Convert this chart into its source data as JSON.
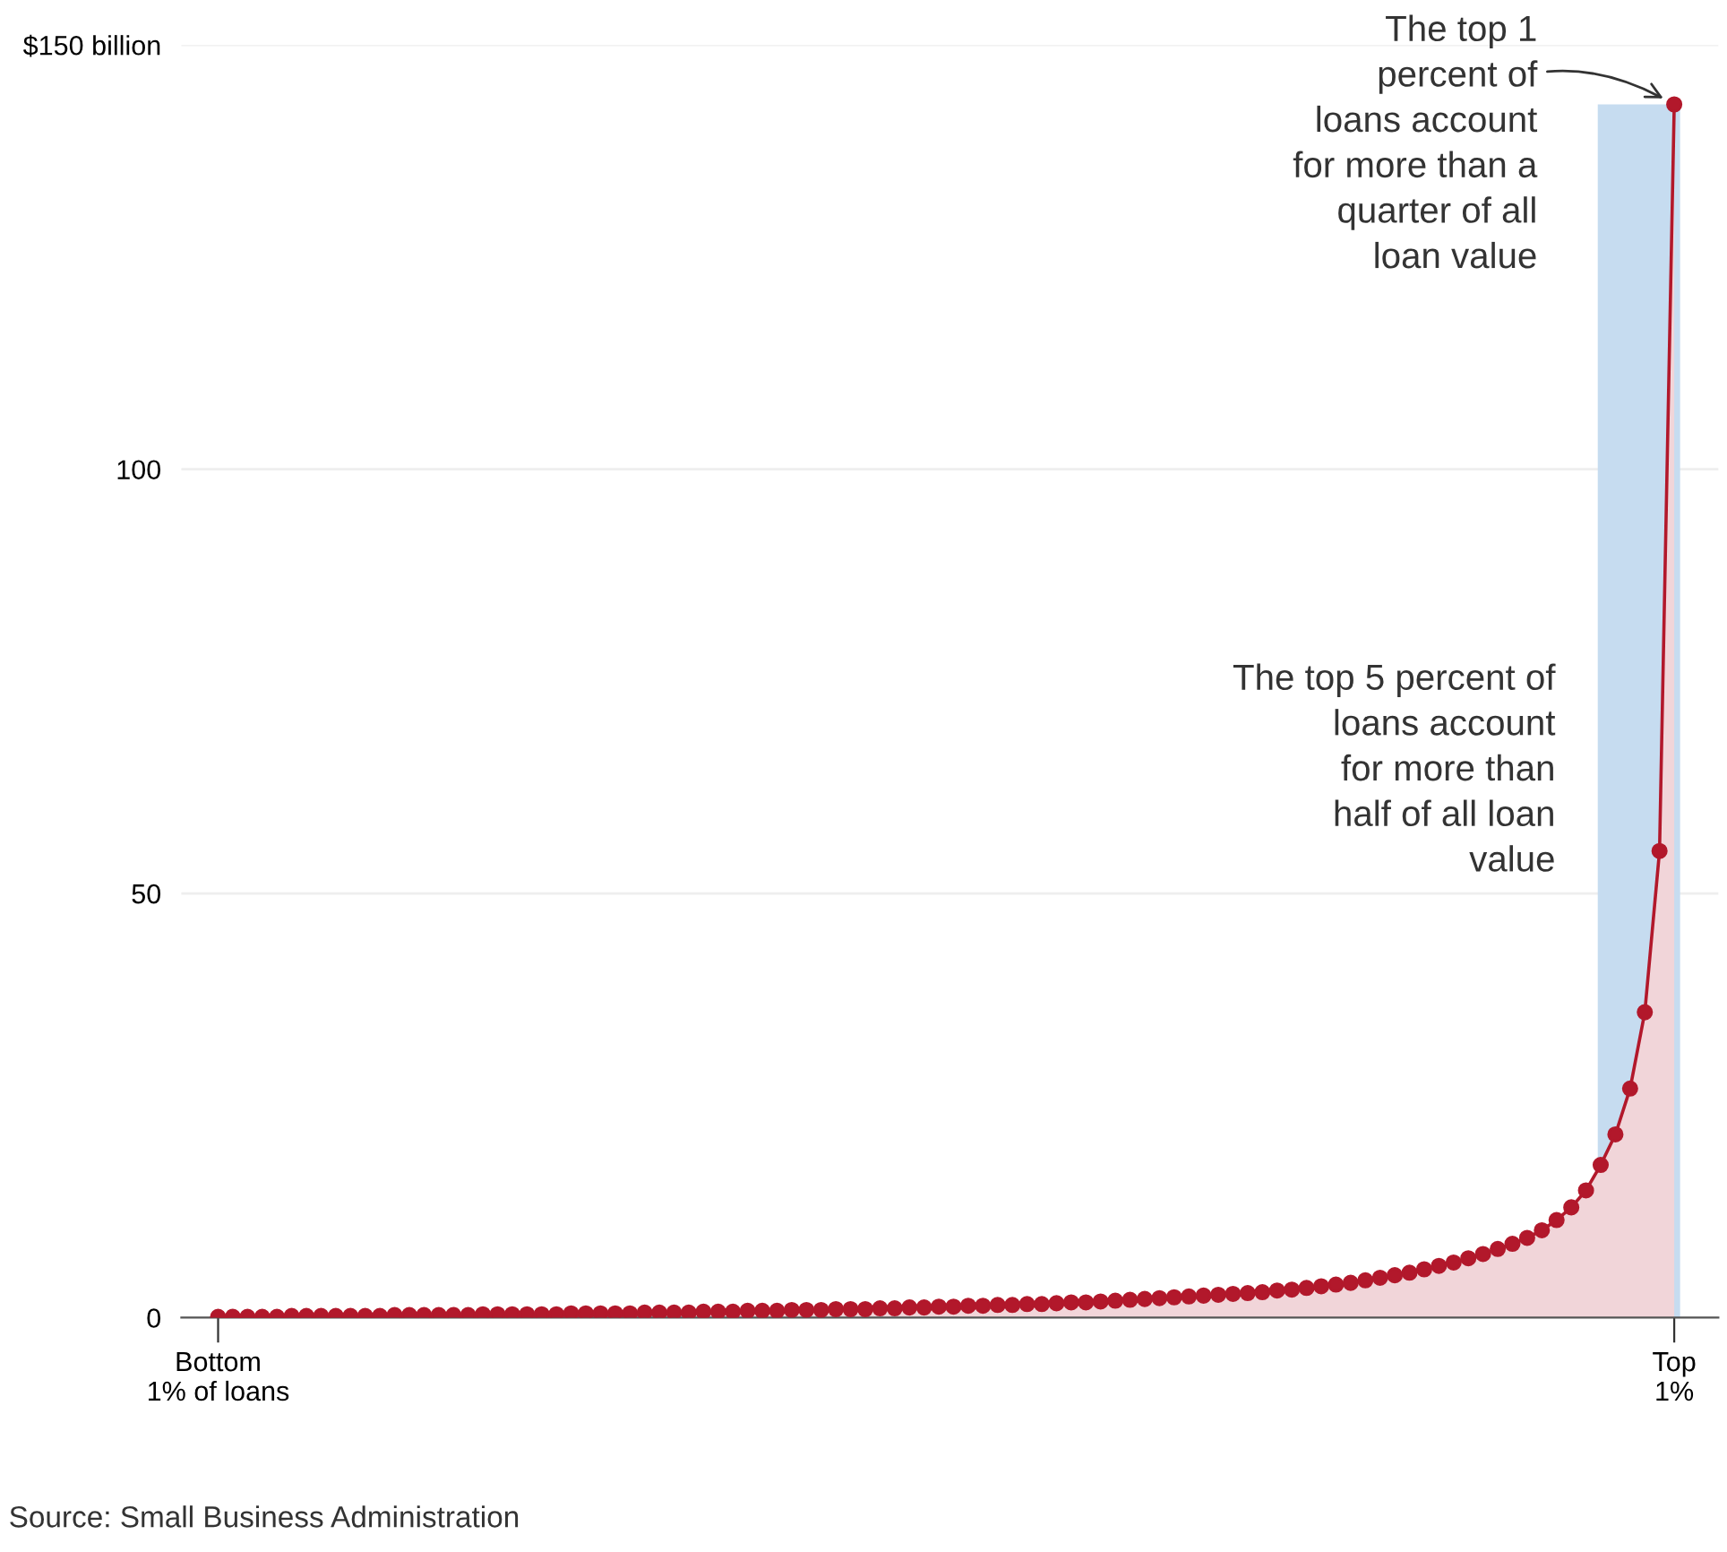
{
  "chart_data": {
    "type": "area",
    "categories": [
      "Bottom\n1% of loans",
      null,
      null,
      null,
      null,
      null,
      null,
      null,
      null,
      null,
      null,
      null,
      null,
      null,
      null,
      null,
      null,
      null,
      null,
      null,
      null,
      null,
      null,
      null,
      null,
      null,
      null,
      null,
      null,
      null,
      null,
      null,
      null,
      null,
      null,
      null,
      null,
      null,
      null,
      null,
      null,
      null,
      null,
      null,
      null,
      null,
      null,
      null,
      null,
      null,
      null,
      null,
      null,
      null,
      null,
      null,
      null,
      null,
      null,
      null,
      null,
      null,
      null,
      null,
      null,
      null,
      null,
      null,
      null,
      null,
      null,
      null,
      null,
      null,
      null,
      null,
      null,
      null,
      null,
      null,
      null,
      null,
      null,
      null,
      null,
      null,
      null,
      null,
      null,
      null,
      null,
      null,
      null,
      null,
      null,
      null,
      null,
      null,
      null,
      "Top\n1%"
    ],
    "series": [
      {
        "color": "#b2182b",
        "values": [
          0.1,
          0.1,
          0.1,
          0.1,
          0.1,
          0.2,
          0.2,
          0.2,
          0.2,
          0.2,
          0.2,
          0.2,
          0.3,
          0.3,
          0.3,
          0.3,
          0.3,
          0.3,
          0.4,
          0.4,
          0.4,
          0.4,
          0.4,
          0.4,
          0.5,
          0.5,
          0.5,
          0.5,
          0.5,
          0.6,
          0.6,
          0.6,
          0.6,
          0.7,
          0.7,
          0.7,
          0.8,
          0.8,
          0.8,
          0.9,
          0.9,
          0.9,
          1.0,
          1.0,
          1.0,
          1.1,
          1.1,
          1.2,
          1.2,
          1.3,
          1.3,
          1.4,
          1.4,
          1.5,
          1.5,
          1.6,
          1.6,
          1.7,
          1.8,
          1.8,
          1.9,
          2.0,
          2.1,
          2.2,
          2.3,
          2.4,
          2.5,
          2.6,
          2.7,
          2.8,
          2.9,
          3.0,
          3.2,
          3.3,
          3.5,
          3.7,
          3.9,
          4.1,
          4.4,
          4.7,
          5.0,
          5.3,
          5.7,
          6.1,
          6.5,
          7.0,
          7.5,
          8.1,
          8.7,
          9.4,
          10.3,
          11.5,
          13,
          15,
          18,
          21.6,
          27,
          36,
          55,
          143
        ]
      }
    ],
    "ylim": [
      0,
      150
    ],
    "yticks": [
      0,
      50,
      100,
      {
        "value": 150,
        "label": "$150 billion"
      }
    ],
    "annotations": [
      "The top 1\npercent of\nloans account\nfor more than a\nquarter of all\nloan value",
      "The top 5 percent of\nloans account\nfor more than\nhalf of all loan\nvalue",
      "Source: Small Business Administration"
    ],
    "grid": "y",
    "marker": "circle",
    "line_style": "solid",
    "legend": false
  }
}
